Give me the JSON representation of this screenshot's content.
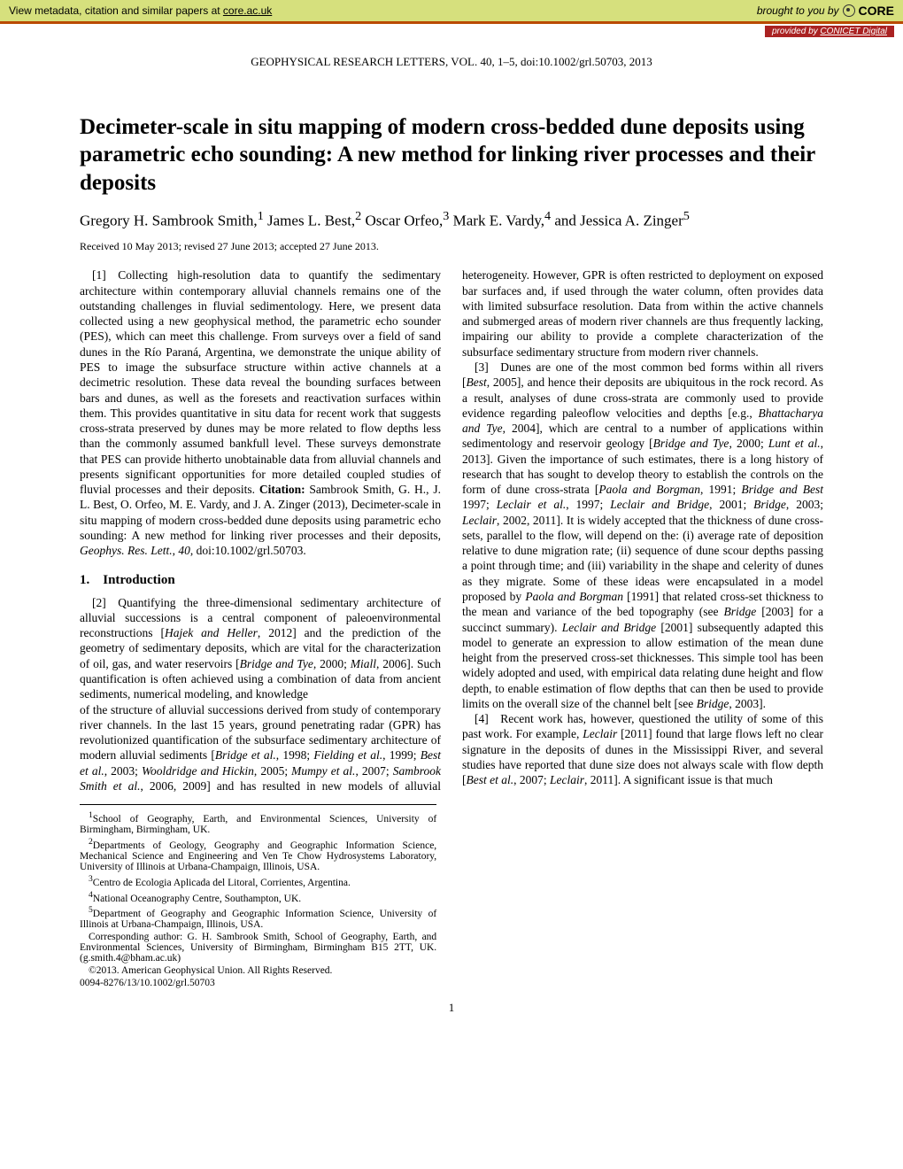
{
  "banner": {
    "left_text": "View metadata, citation and similar papers at ",
    "left_link": "core.ac.uk",
    "brought": "brought to you by",
    "logo": "CORE",
    "provided_prefix": "provided by ",
    "provided_link": "CONICET Digital"
  },
  "journal_header": "GEOPHYSICAL RESEARCH LETTERS, VOL. 40, 1–5, doi:10.1002/grl.50703, 2013",
  "title": "Decimeter-scale in situ mapping of modern cross-bedded dune deposits using parametric echo sounding: A new method for linking river processes and their deposits",
  "authors_html": "Gregory H. Sambrook Smith,<sup>1</sup> James L. Best,<sup>2</sup> Oscar Orfeo,<sup>3</sup> Mark E. Vardy,<sup>4</sup> and Jessica A. Zinger<sup>5</sup>",
  "dates": "Received 10 May 2013; revised 27 June 2013; accepted 27 June 2013.",
  "abstract": "[1] Collecting high-resolution data to quantify the sedimentary architecture within contemporary alluvial channels remains one of the outstanding challenges in fluvial sedimentology. Here, we present data collected using a new geophysical method, the parametric echo sounder (PES), which can meet this challenge. From surveys over a field of sand dunes in the Río Paraná, Argentina, we demonstrate the unique ability of PES to image the subsurface structure within active channels at a decimetric resolution. These data reveal the bounding surfaces between bars and dunes, as well as the foresets and reactivation surfaces within them. This provides quantitative in situ data for recent work that suggests cross-strata preserved by dunes may be more related to flow depths less than the commonly assumed bankfull level. These surveys demonstrate that PES can provide hitherto unobtainable data from alluvial channels and presents significant opportunities for more detailed coupled studies of fluvial processes and their deposits. <b>Citation:</b> Sambrook Smith, G. H., J. L. Best, O. Orfeo, M. E. Vardy, and J. A. Zinger (2013), Decimeter-scale in situ mapping of modern cross-bedded dune deposits using parametric echo sounding: A new method for linking river processes and their deposits, <i>Geophys. Res. Lett.</i>, <i>40</i>, doi:10.1002/grl.50703.",
  "section1_heading": "1. Introduction",
  "para2": "[2] Quantifying the three-dimensional sedimentary architecture of alluvial successions is a central component of paleoenvironmental reconstructions [<i>Hajek and Heller</i>, 2012] and the prediction of the geometry of sedimentary deposits, which are vital for the characterization of oil, gas, and water reservoirs [<i>Bridge and Tye</i>, 2000; <i>Miall</i>, 2006]. Such quantification is often achieved using a combination of data from ancient sediments, numerical modeling, and knowledge",
  "col2_cont": "of the structure of alluvial successions derived from study of contemporary river channels. In the last 15 years, ground penetrating radar (GPR) has revolutionized quantification of the subsurface sedimentary architecture of modern alluvial sediments [<i>Bridge et al.</i>, 1998; <i>Fielding et al.</i>, 1999; <i>Best et al.</i>, 2003; <i>Wooldridge and Hickin</i>, 2005; <i>Mumpy et al.</i>, 2007; <i>Sambrook Smith et al.</i>, 2006, 2009] and has resulted in new models of alluvial heterogeneity. However, GPR is often restricted to deployment on exposed bar surfaces and, if used through the water column, often provides data with limited subsurface resolution. Data from within the active channels and submerged areas of modern river channels are thus frequently lacking, impairing our ability to provide a complete characterization of the subsurface sedimentary structure from modern river channels.",
  "para3": "[3] Dunes are one of the most common bed forms within all rivers [<i>Best</i>, 2005], and hence their deposits are ubiquitous in the rock record. As a result, analyses of dune cross-strata are commonly used to provide evidence regarding paleoflow velocities and depths [e.g., <i>Bhattacharya and Tye</i>, 2004], which are central to a number of applications within sedimentology and reservoir geology [<i>Bridge and Tye</i>, 2000; <i>Lunt et al.</i>, 2013]. Given the importance of such estimates, there is a long history of research that has sought to develop theory to establish the controls on the form of dune cross-strata [<i>Paola and Borgman</i>, 1991; <i>Bridge and Best</i> 1997; <i>Leclair et al.</i>, 1997; <i>Leclair and Bridge</i>, 2001; <i>Bridge</i>, 2003; <i>Leclair</i>, 2002, 2011]. It is widely accepted that the thickness of dune cross-sets, parallel to the flow, will depend on the: (i) average rate of deposition relative to dune migration rate; (ii) sequence of dune scour depths passing a point through time; and (iii) variability in the shape and celerity of dunes as they migrate. Some of these ideas were encapsulated in a model proposed by <i>Paola and Borgman</i> [1991] that related cross-set thickness to the mean and variance of the bed topography (see <i>Bridge</i> [2003] for a succinct summary). <i>Leclair and Bridge</i> [2001] subsequently adapted this model to generate an expression to allow estimation of the mean dune height from the preserved cross-set thicknesses. This simple tool has been widely adopted and used, with empirical data relating dune height and flow depth, to enable estimation of flow depths that can then be used to provide limits on the overall size of the channel belt [see <i>Bridge</i>, 2003].",
  "para4": "[4] Recent work has, however, questioned the utility of some of this past work. For example, <i>Leclair</i> [2011] found that large flows left no clear signature in the deposits of dunes in the Mississippi River, and several studies have reported that dune size does not always scale with flow depth [<i>Best et al.</i>, 2007; <i>Leclair</i>, 2011]. A significant issue is that much",
  "affiliations": {
    "a1": "School of Geography, Earth, and Environmental Sciences, University of Birmingham, Birmingham, UK.",
    "a2": "Departments of Geology, Geography and Geographic Information Science, Mechanical Science and Engineering and Ven Te Chow Hydrosystems Laboratory, University of Illinois at Urbana-Champaign, Illinois, USA.",
    "a3": "Centro de Ecologia Aplicada del Litoral, Corrientes, Argentina.",
    "a4": "National Oceanography Centre, Southampton, UK.",
    "a5": "Department of Geography and Geographic Information Science, University of Illinois at Urbana-Champaign, Illinois, USA."
  },
  "corresponding": "Corresponding author: G. H. Sambrook Smith, School of Geography, Earth, and Environmental Sciences, University of Birmingham, Birmingham B15 2TT, UK. (g.smith.4@bham.ac.uk)",
  "copyright_line1": "©2013. American Geophysical Union. All Rights Reserved.",
  "copyright_line2": "0094-8276/13/10.1002/grl.50703",
  "pagenum": "1"
}
